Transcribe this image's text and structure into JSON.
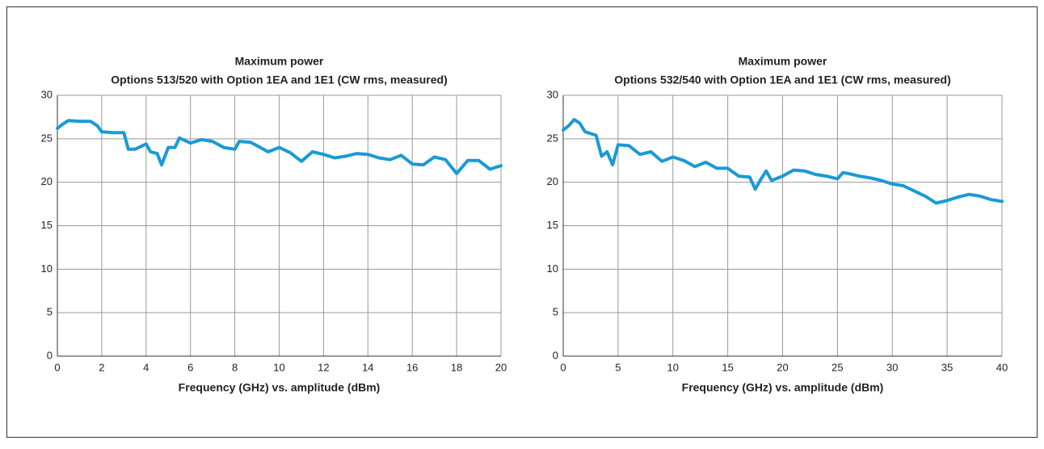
{
  "chart_data": [
    {
      "type": "line",
      "title": "Maximum power",
      "subtitle": "Options 513/520 with Option 1EA and 1E1 (CW rms, measured)",
      "x_label": "Frequency (GHz) vs. amplitude (dBm)",
      "xlim": [
        0,
        20
      ],
      "xticks": [
        0,
        2,
        4,
        6,
        8,
        10,
        12,
        14,
        16,
        18,
        20
      ],
      "ylim": [
        0,
        30
      ],
      "yticks": [
        0,
        5,
        10,
        15,
        20,
        25,
        30
      ],
      "grid": true,
      "series": [
        {
          "color": "#1a9ad6",
          "x": [
            0,
            0.2,
            0.5,
            1,
            1.5,
            1.8,
            2,
            2.5,
            3,
            3.2,
            3.5,
            4,
            4.2,
            4.5,
            4.7,
            5,
            5.3,
            5.5,
            6,
            6.5,
            7,
            7.5,
            8,
            8.2,
            8.7,
            9,
            9.5,
            10,
            10.5,
            11,
            11.5,
            12,
            12.5,
            13,
            13.5,
            14,
            14.5,
            15,
            15.5,
            16,
            16.5,
            17,
            17.5,
            18,
            18.5,
            19,
            19.5,
            20
          ],
          "values": [
            26.2,
            26.6,
            27.1,
            27.0,
            27.0,
            26.5,
            25.8,
            25.7,
            25.7,
            23.8,
            23.8,
            24.4,
            23.5,
            23.3,
            22.0,
            24.0,
            24.0,
            25.1,
            24.5,
            24.9,
            24.7,
            24.0,
            23.8,
            24.7,
            24.6,
            24.2,
            23.5,
            24.0,
            23.4,
            22.4,
            23.5,
            23.2,
            22.8,
            23.0,
            23.3,
            23.2,
            22.8,
            22.6,
            23.1,
            22.1,
            22.0,
            22.9,
            22.6,
            21.0,
            22.5,
            22.5,
            21.5,
            21.9
          ]
        }
      ]
    },
    {
      "type": "line",
      "title": "Maximum power",
      "subtitle": "Options 532/540 with Option 1EA and 1E1 (CW rms, measured)",
      "x_label": "Frequency (GHz) vs. amplitude (dBm)",
      "xlim": [
        0,
        40
      ],
      "xticks": [
        0,
        5,
        10,
        15,
        20,
        25,
        30,
        35,
        40
      ],
      "ylim": [
        0,
        30
      ],
      "yticks": [
        0,
        5,
        10,
        15,
        20,
        25,
        30
      ],
      "grid": true,
      "series": [
        {
          "color": "#1a9ad6",
          "x": [
            0,
            0.5,
            1,
            1.5,
            2,
            3,
            3.5,
            4,
            4.5,
            5,
            6,
            7,
            8,
            9,
            10,
            11,
            12,
            13,
            14,
            15,
            16,
            17,
            17.5,
            18,
            18.5,
            19,
            20,
            21,
            22,
            23,
            24,
            25,
            25.5,
            26,
            27,
            28,
            29,
            30,
            31,
            32,
            33,
            34,
            35,
            36,
            37,
            38,
            39,
            40
          ],
          "values": [
            26.0,
            26.5,
            27.2,
            26.8,
            25.8,
            25.4,
            23.0,
            23.5,
            22.0,
            24.3,
            24.2,
            23.2,
            23.5,
            22.4,
            22.9,
            22.5,
            21.8,
            22.3,
            21.6,
            21.6,
            20.7,
            20.6,
            19.2,
            20.3,
            21.3,
            20.2,
            20.7,
            21.4,
            21.3,
            20.9,
            20.7,
            20.4,
            21.1,
            21.0,
            20.7,
            20.5,
            20.2,
            19.8,
            19.6,
            19.0,
            18.4,
            17.6,
            17.9,
            18.3,
            18.6,
            18.4,
            18.0,
            17.8
          ]
        }
      ]
    }
  ]
}
